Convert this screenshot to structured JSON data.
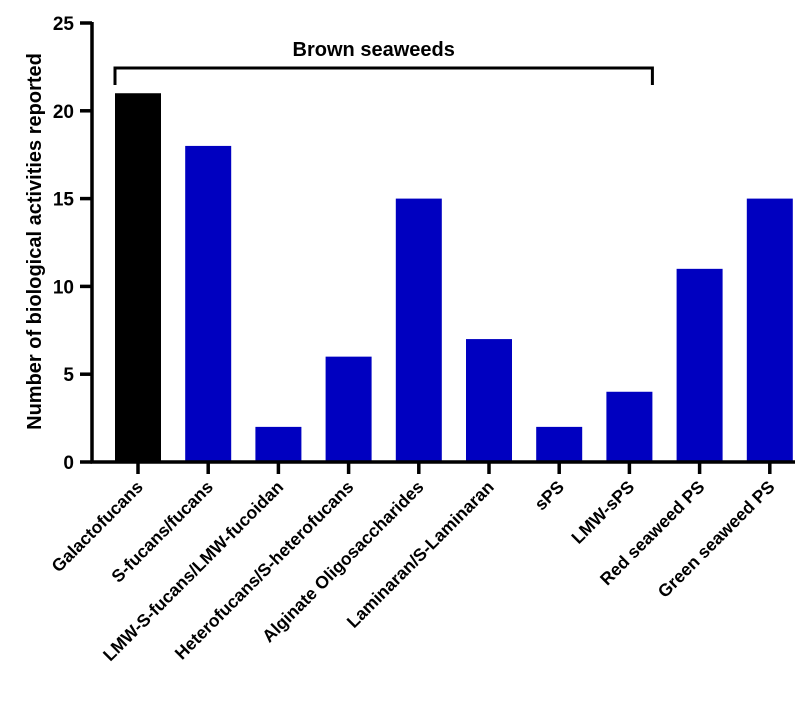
{
  "chart_data": {
    "type": "bar",
    "title": "",
    "xlabel": "",
    "ylabel": "Number of biological activities reported",
    "ylim": [
      0,
      25
    ],
    "yticks": [
      0,
      5,
      10,
      15,
      20,
      25
    ],
    "grid": false,
    "categories": [
      "Galactofucans",
      "S-fucans/fucans",
      "LMW-S-fucans/LMW-fucoidan",
      "Heterofucans/S-heterofucans",
      "Alginate Oligosaccharides",
      "Laminaran/S-Laminaran",
      "sPS",
      "LMW-sPS",
      "Red seaweed PS",
      "Green seaweed PS"
    ],
    "values": [
      21,
      18,
      2,
      6,
      15,
      7,
      2,
      4,
      11,
      15
    ],
    "bar_colors": [
      "#000000",
      "#0000c0",
      "#0000c0",
      "#0000c0",
      "#0000c0",
      "#0000c0",
      "#0000c0",
      "#0000c0",
      "#0000c0",
      "#0000c0"
    ],
    "annotation": {
      "text": "Brown seaweeds",
      "from_category": 0,
      "to_category": 7
    }
  }
}
